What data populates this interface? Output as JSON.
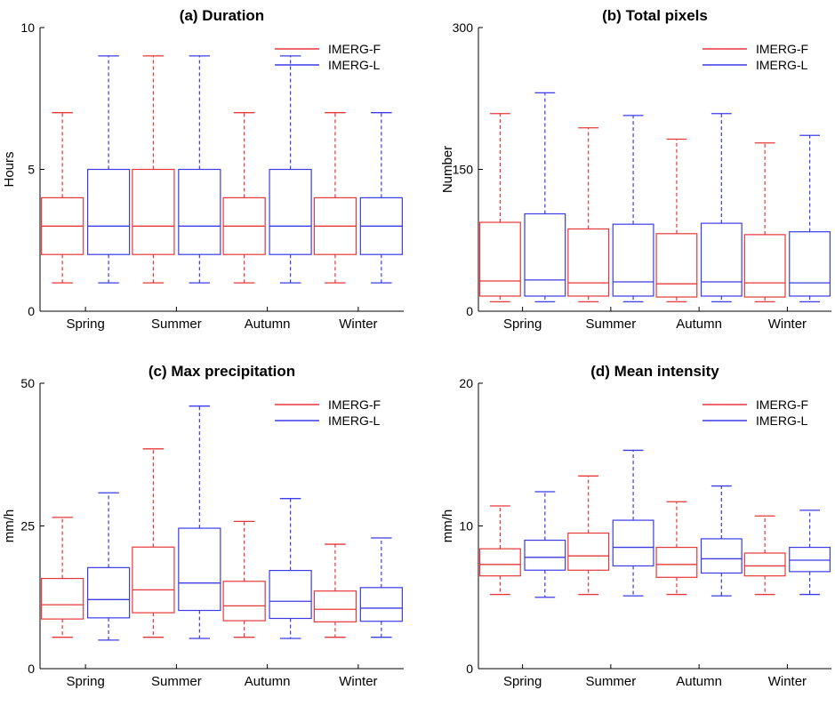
{
  "colors": {
    "imerg_f": "#e8373a",
    "imerg_l": "#3b3bea",
    "axis": "#000000"
  },
  "chart_data": [
    {
      "type": "box",
      "title": "(a) Duration",
      "ylabel": "Hours",
      "ylim": [
        0,
        10
      ],
      "yticks": [
        "0",
        "5",
        "10"
      ],
      "categories": [
        "Spring",
        "Summer",
        "Autumn",
        "Winter"
      ],
      "legend": [
        "IMERG-F",
        "IMERG-L"
      ],
      "legend_position": "top-right",
      "series": [
        {
          "name": "IMERG-F",
          "boxes": [
            {
              "min": 1,
              "q1": 2,
              "median": 3,
              "q3": 4,
              "max": 7
            },
            {
              "min": 1,
              "q1": 2,
              "median": 3,
              "q3": 5,
              "max": 9
            },
            {
              "min": 1,
              "q1": 2,
              "median": 3,
              "q3": 4,
              "max": 7
            },
            {
              "min": 1,
              "q1": 2,
              "median": 3,
              "q3": 4,
              "max": 7
            }
          ]
        },
        {
          "name": "IMERG-L",
          "boxes": [
            {
              "min": 1,
              "q1": 2,
              "median": 3,
              "q3": 5,
              "max": 9
            },
            {
              "min": 1,
              "q1": 2,
              "median": 3,
              "q3": 5,
              "max": 9
            },
            {
              "min": 1,
              "q1": 2,
              "median": 3,
              "q3": 5,
              "max": 9
            },
            {
              "min": 1,
              "q1": 2,
              "median": 3,
              "q3": 4,
              "max": 7
            }
          ]
        }
      ]
    },
    {
      "type": "box",
      "title": "(b) Total pixels",
      "ylabel": "Number",
      "ylim": [
        0,
        300
      ],
      "yticks": [
        "0",
        "150",
        "300"
      ],
      "categories": [
        "Spring",
        "Summer",
        "Autumn",
        "Winter"
      ],
      "legend": [
        "IMERG-F",
        "IMERG-L"
      ],
      "legend_position": "top-right",
      "series": [
        {
          "name": "IMERG-F",
          "boxes": [
            {
              "min": 10,
              "q1": 16,
              "median": 32,
              "q3": 94,
              "max": 209
            },
            {
              "min": 10,
              "q1": 16,
              "median": 30,
              "q3": 87,
              "max": 194
            },
            {
              "min": 10,
              "q1": 15,
              "median": 29,
              "q3": 82,
              "max": 182
            },
            {
              "min": 10,
              "q1": 15,
              "median": 30,
              "q3": 81,
              "max": 178
            }
          ]
        },
        {
          "name": "IMERG-L",
          "boxes": [
            {
              "min": 10,
              "q1": 16,
              "median": 33,
              "q3": 103,
              "max": 231
            },
            {
              "min": 10,
              "q1": 16,
              "median": 31,
              "q3": 92,
              "max": 207
            },
            {
              "min": 10,
              "q1": 16,
              "median": 31,
              "q3": 93,
              "max": 209
            },
            {
              "min": 10,
              "q1": 16,
              "median": 30,
              "q3": 84,
              "max": 186
            }
          ]
        }
      ]
    },
    {
      "type": "box",
      "title": "(c) Max precipitation",
      "ylabel": "mm/h",
      "ylim": [
        0,
        50
      ],
      "yticks": [
        "0",
        "25",
        "50"
      ],
      "categories": [
        "Spring",
        "Summer",
        "Autumn",
        "Winter"
      ],
      "legend": [
        "IMERG-F",
        "IMERG-L"
      ],
      "legend_position": "top-right",
      "series": [
        {
          "name": "IMERG-F",
          "boxes": [
            {
              "min": 5.5,
              "q1": 8.7,
              "median": 11.2,
              "q3": 15.8,
              "max": 26.5
            },
            {
              "min": 5.5,
              "q1": 9.8,
              "median": 13.8,
              "q3": 21.3,
              "max": 38.5
            },
            {
              "min": 5.5,
              "q1": 8.4,
              "median": 11.0,
              "q3": 15.3,
              "max": 25.8
            },
            {
              "min": 5.5,
              "q1": 8.2,
              "median": 10.4,
              "q3": 13.6,
              "max": 21.8
            }
          ]
        },
        {
          "name": "IMERG-L",
          "boxes": [
            {
              "min": 5.0,
              "q1": 8.9,
              "median": 12.1,
              "q3": 17.7,
              "max": 30.8
            },
            {
              "min": 5.3,
              "q1": 10.2,
              "median": 15.0,
              "q3": 24.6,
              "max": 46.0
            },
            {
              "min": 5.3,
              "q1": 8.8,
              "median": 11.8,
              "q3": 17.2,
              "max": 29.8
            },
            {
              "min": 5.5,
              "q1": 8.3,
              "median": 10.6,
              "q3": 14.2,
              "max": 22.9
            }
          ]
        }
      ]
    },
    {
      "type": "box",
      "title": "(d) Mean intensity",
      "ylabel": "mm/h",
      "ylim": [
        0,
        20
      ],
      "yticks": [
        "0",
        "10",
        "20"
      ],
      "categories": [
        "Spring",
        "Summer",
        "Autumn",
        "Winter"
      ],
      "legend": [
        "IMERG-F",
        "IMERG-L"
      ],
      "legend_position": "top-right",
      "series": [
        {
          "name": "IMERG-F",
          "boxes": [
            {
              "min": 5.2,
              "q1": 6.5,
              "median": 7.3,
              "q3": 8.4,
              "max": 11.4
            },
            {
              "min": 5.2,
              "q1": 6.9,
              "median": 7.9,
              "q3": 9.5,
              "max": 13.5
            },
            {
              "min": 5.2,
              "q1": 6.4,
              "median": 7.3,
              "q3": 8.5,
              "max": 11.7
            },
            {
              "min": 5.2,
              "q1": 6.5,
              "median": 7.2,
              "q3": 8.1,
              "max": 10.7
            }
          ]
        },
        {
          "name": "IMERG-L",
          "boxes": [
            {
              "min": 5.0,
              "q1": 6.9,
              "median": 7.8,
              "q3": 9.0,
              "max": 12.4
            },
            {
              "min": 5.1,
              "q1": 7.2,
              "median": 8.5,
              "q3": 10.4,
              "max": 15.3
            },
            {
              "min": 5.1,
              "q1": 6.7,
              "median": 7.7,
              "q3": 9.1,
              "max": 12.8
            },
            {
              "min": 5.2,
              "q1": 6.8,
              "median": 7.6,
              "q3": 8.5,
              "max": 11.1
            }
          ]
        }
      ]
    }
  ]
}
